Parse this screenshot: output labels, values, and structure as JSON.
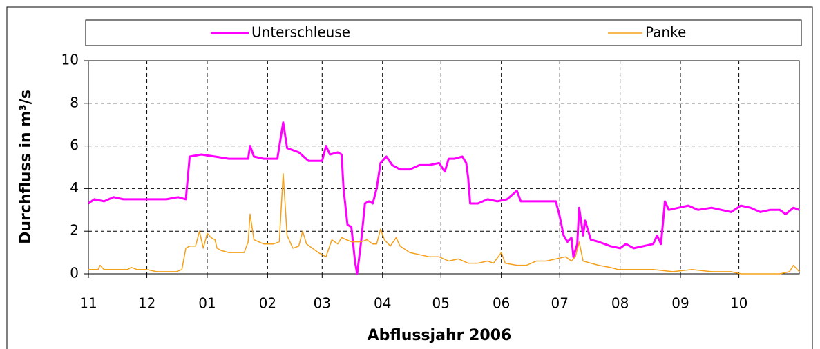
{
  "chart_data": {
    "type": "line",
    "xlabel": "Abflussjahr 2006",
    "ylabel": "Durchfluss in m³/s",
    "xlim": [
      0,
      365
    ],
    "xticks": [
      {
        "value": 0,
        "label": "11"
      },
      {
        "value": 30,
        "label": "12"
      },
      {
        "value": 61,
        "label": "01"
      },
      {
        "value": 92,
        "label": "02"
      },
      {
        "value": 120,
        "label": "03"
      },
      {
        "value": 151,
        "label": "04"
      },
      {
        "value": 181,
        "label": "05"
      },
      {
        "value": 212,
        "label": "06"
      },
      {
        "value": 242,
        "label": "07"
      },
      {
        "value": 273,
        "label": "08"
      },
      {
        "value": 304,
        "label": "09"
      },
      {
        "value": 334,
        "label": "10"
      }
    ],
    "ylim": [
      0,
      10
    ],
    "yticks": [
      0,
      2,
      4,
      6,
      8,
      10
    ],
    "grid": true,
    "legend": "top",
    "series": [
      {
        "name": "Unterschleuse",
        "color": "#ff00ff",
        "x": [
          0,
          3,
          8,
          13,
          18,
          25,
          32,
          40,
          46,
          50,
          51,
          52,
          58,
          65,
          72,
          78,
          82,
          83,
          85,
          90,
          97,
          100,
          102,
          108,
          113,
          120,
          122,
          124,
          128,
          130,
          131,
          133,
          135,
          137,
          138,
          140,
          142,
          144,
          146,
          148,
          150,
          153,
          156,
          160,
          165,
          170,
          175,
          180,
          183,
          185,
          188,
          192,
          194,
          195,
          196,
          200,
          205,
          210,
          215,
          220,
          222,
          230,
          237,
          240,
          242,
          244,
          246,
          248,
          249,
          251,
          252,
          254,
          255,
          258,
          262,
          268,
          273,
          276,
          280,
          285,
          290,
          292,
          294,
          295,
          296,
          298,
          303,
          308,
          313,
          320,
          325,
          330,
          335,
          340,
          345,
          350,
          355,
          358,
          362,
          365
        ],
        "values": [
          3.3,
          3.5,
          3.4,
          3.6,
          3.5,
          3.5,
          3.5,
          3.5,
          3.6,
          3.5,
          4.5,
          5.5,
          5.6,
          5.5,
          5.4,
          5.4,
          5.4,
          6.0,
          5.5,
          5.4,
          5.4,
          7.1,
          5.9,
          5.7,
          5.3,
          5.3,
          6.0,
          5.6,
          5.7,
          5.6,
          4.0,
          2.3,
          2.2,
          0.5,
          0,
          1.5,
          3.3,
          3.4,
          3.3,
          4.0,
          5.2,
          5.5,
          5.1,
          4.9,
          4.9,
          5.1,
          5.1,
          5.2,
          4.8,
          5.4,
          5.4,
          5.5,
          5.2,
          4.5,
          3.3,
          3.3,
          3.5,
          3.4,
          3.5,
          3.9,
          3.4,
          3.4,
          3.4,
          3.4,
          2.7,
          1.8,
          1.5,
          1.7,
          0.8,
          1.4,
          3.1,
          1.8,
          2.5,
          1.6,
          1.5,
          1.3,
          1.2,
          1.4,
          1.2,
          1.3,
          1.4,
          1.8,
          1.4,
          2.4,
          3.4,
          3.0,
          3.1,
          3.2,
          3.0,
          3.1,
          3.0,
          2.9,
          3.2,
          3.1,
          2.9,
          3.0,
          3.0,
          2.8,
          3.1,
          3.0
        ]
      },
      {
        "name": "Panke",
        "color": "#f5a01a",
        "x": [
          0,
          5,
          6,
          8,
          20,
          22,
          25,
          30,
          35,
          40,
          45,
          48,
          50,
          52,
          55,
          57,
          59,
          61,
          63,
          65,
          66,
          68,
          72,
          80,
          82,
          83,
          85,
          90,
          95,
          98,
          100,
          102,
          105,
          108,
          110,
          112,
          118,
          122,
          125,
          128,
          130,
          135,
          140,
          143,
          146,
          148,
          150,
          152,
          155,
          158,
          160,
          165,
          170,
          175,
          180,
          185,
          190,
          195,
          200,
          205,
          208,
          212,
          214,
          220,
          225,
          230,
          235,
          240,
          245,
          248,
          250,
          252,
          254,
          258,
          262,
          268,
          272,
          280,
          290,
          300,
          310,
          320,
          330,
          335,
          345,
          355,
          360,
          362,
          365
        ],
        "values": [
          0.2,
          0.2,
          0.4,
          0.2,
          0.2,
          0.3,
          0.2,
          0.2,
          0.1,
          0.1,
          0.1,
          0.2,
          1.2,
          1.3,
          1.3,
          2.0,
          1.2,
          1.9,
          1.7,
          1.6,
          1.2,
          1.1,
          1.0,
          1.0,
          1.5,
          2.8,
          1.6,
          1.4,
          1.4,
          1.5,
          4.7,
          1.8,
          1.2,
          1.3,
          2.0,
          1.4,
          1.0,
          0.8,
          1.6,
          1.4,
          1.7,
          1.5,
          1.5,
          1.6,
          1.4,
          1.4,
          2.1,
          1.6,
          1.3,
          1.7,
          1.3,
          1.0,
          0.9,
          0.8,
          0.8,
          0.6,
          0.7,
          0.5,
          0.5,
          0.6,
          0.5,
          1.0,
          0.5,
          0.4,
          0.4,
          0.6,
          0.6,
          0.7,
          0.8,
          0.6,
          0.8,
          1.5,
          0.6,
          0.5,
          0.4,
          0.3,
          0.2,
          0.2,
          0.2,
          0.1,
          0.2,
          0.1,
          0.1,
          0.0,
          0.0,
          0.0,
          0.1,
          0.4,
          0.1
        ]
      }
    ]
  }
}
